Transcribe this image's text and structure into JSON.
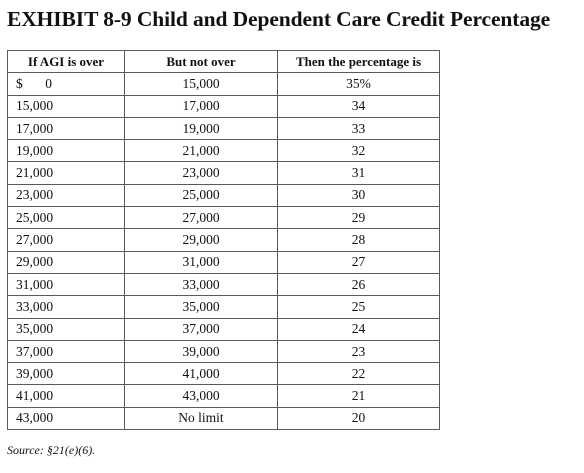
{
  "exhibit": {
    "title": "EXHIBIT 8-9 Child and Dependent Care Credit Percentage"
  },
  "table": {
    "headers": [
      "If AGI is over",
      "But not over",
      "Then the percentage is"
    ],
    "first_row": {
      "currency": "$",
      "over": "0",
      "not_over": "15,000",
      "percentage": "35%"
    },
    "rows": [
      [
        "15,000",
        "17,000",
        "34"
      ],
      [
        "17,000",
        "19,000",
        "33"
      ],
      [
        "19,000",
        "21,000",
        "32"
      ],
      [
        "21,000",
        "23,000",
        "31"
      ],
      [
        "23,000",
        "25,000",
        "30"
      ],
      [
        "25,000",
        "27,000",
        "29"
      ],
      [
        "27,000",
        "29,000",
        "28"
      ],
      [
        "29,000",
        "31,000",
        "27"
      ],
      [
        "31,000",
        "33,000",
        "26"
      ],
      [
        "33,000",
        "35,000",
        "25"
      ],
      [
        "35,000",
        "37,000",
        "24"
      ],
      [
        "37,000",
        "39,000",
        "23"
      ],
      [
        "39,000",
        "41,000",
        "22"
      ],
      [
        "41,000",
        "43,000",
        "21"
      ],
      [
        "43,000",
        "No limit",
        "20"
      ]
    ]
  },
  "source": "Source: §21(e)(6)."
}
